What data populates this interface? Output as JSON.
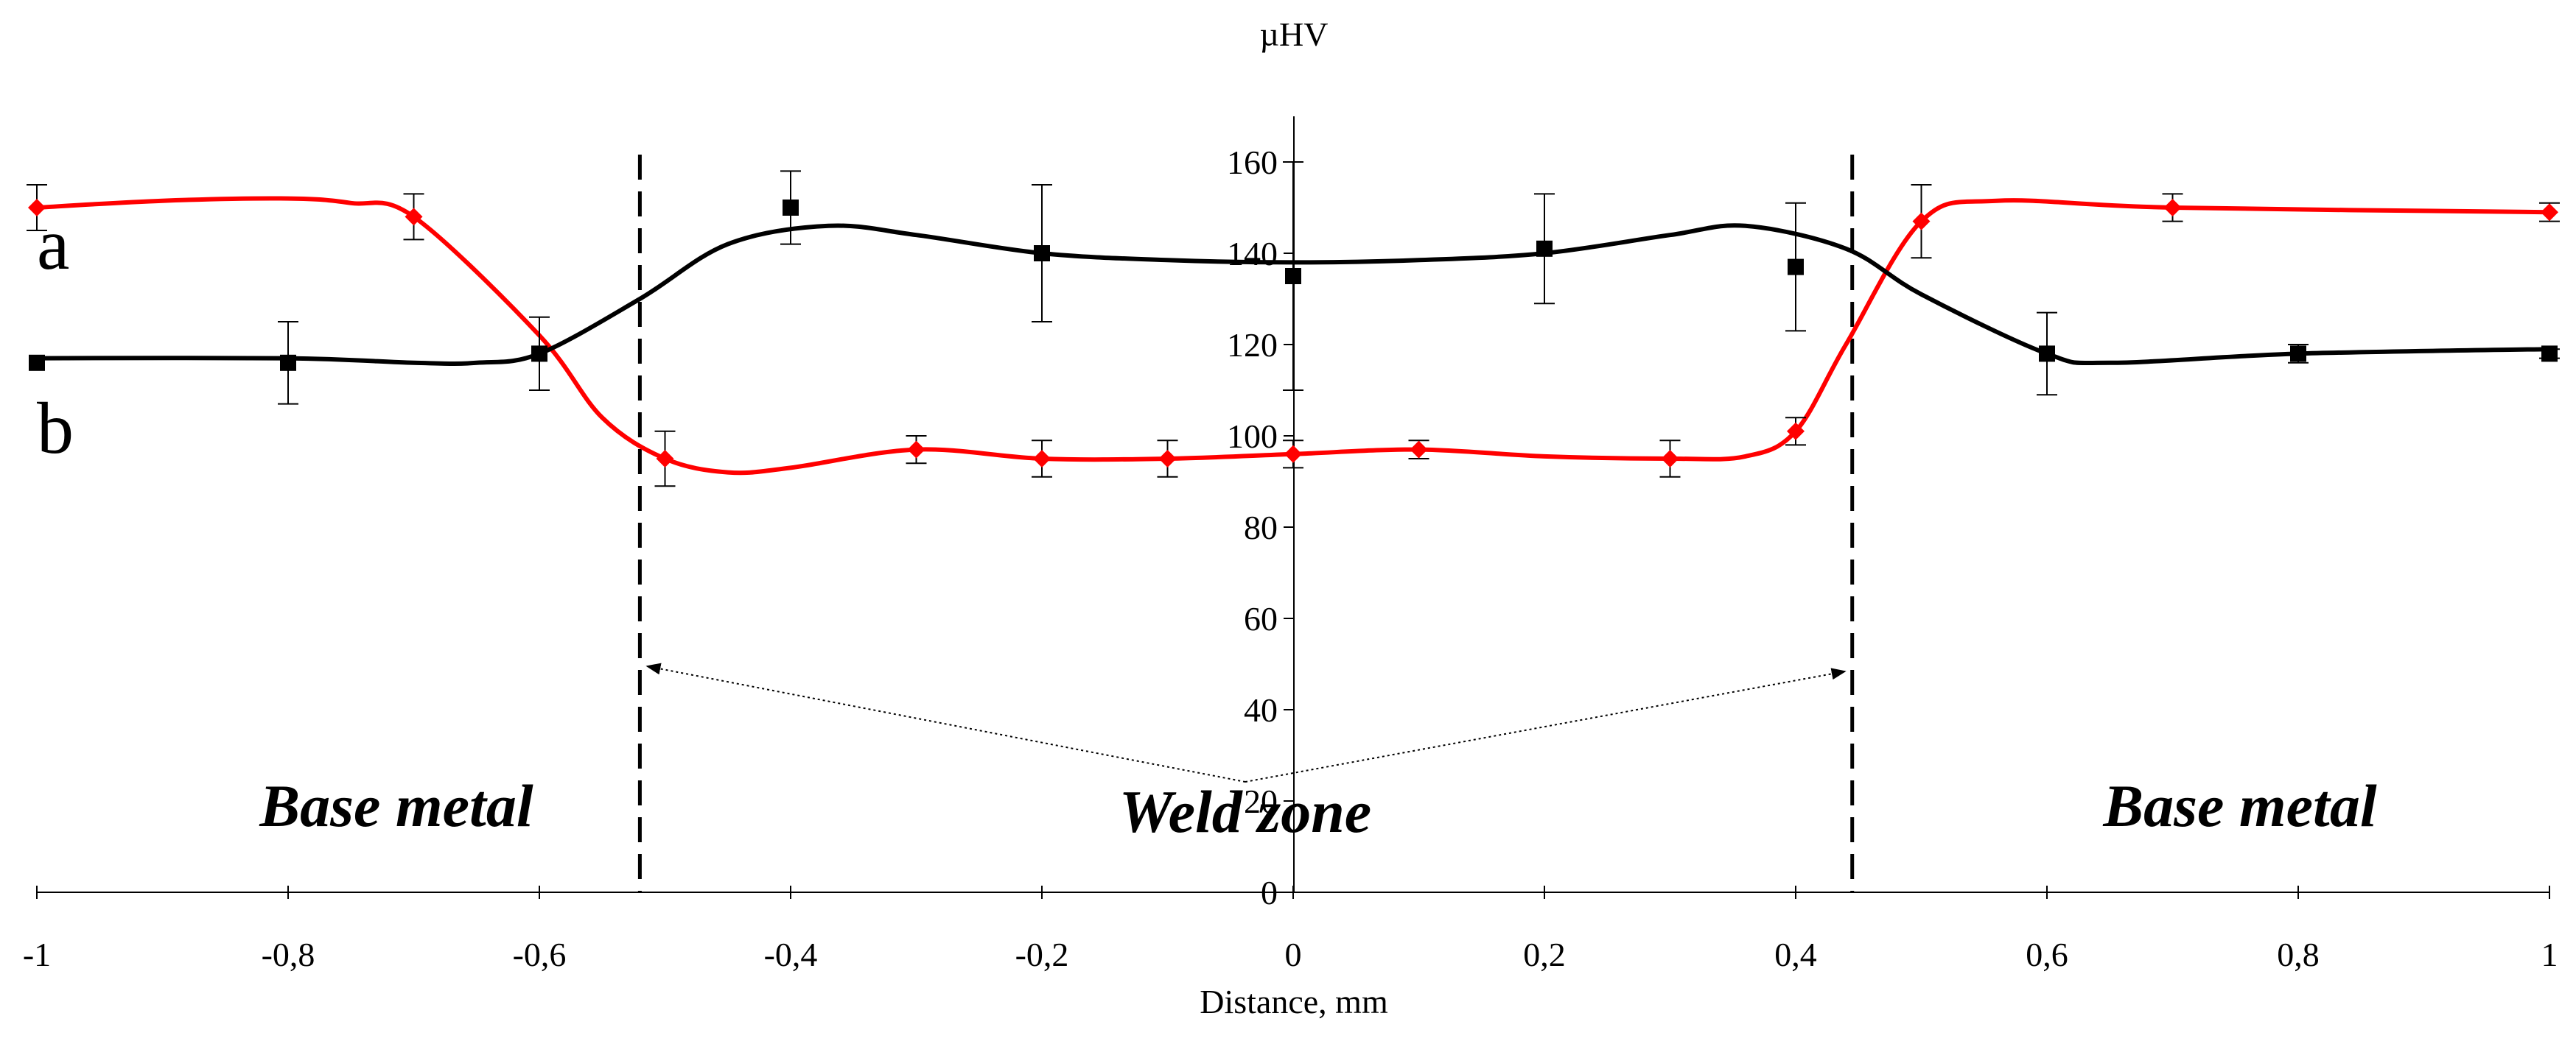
{
  "chart_data": {
    "type": "line",
    "title": "",
    "ylabel": "µHV",
    "xlabel": "Distance, mm",
    "xlim": [
      -1,
      1
    ],
    "ylim": [
      0,
      170
    ],
    "x_ticks": [
      -1,
      -0.8,
      -0.6,
      -0.4,
      -0.2,
      0,
      0.2,
      0.4,
      0.6,
      0.8,
      1
    ],
    "x_tick_labels": [
      "-1",
      "-0,8",
      "-0,6",
      "-0,4",
      "-0,2",
      "0",
      "0,2",
      "0,4",
      "0,6",
      "0,8",
      "1"
    ],
    "y_ticks": [
      0,
      20,
      40,
      60,
      80,
      100,
      120,
      140,
      160
    ],
    "y_tick_labels": [
      "0",
      "20",
      "40",
      "60",
      "80",
      "100",
      "120",
      "140",
      "160"
    ],
    "series": [
      {
        "name": "a",
        "color": "#ff0000",
        "marker": "diamond",
        "x": [
          -1,
          -0.7,
          -0.5,
          -0.3,
          -0.2,
          -0.1,
          0,
          0.1,
          0.3,
          0.4,
          0.5,
          0.7,
          1
        ],
        "values": [
          150,
          148,
          95,
          97,
          95,
          95,
          96,
          97,
          95,
          101,
          147,
          150,
          149
        ],
        "error": [
          5,
          5,
          6,
          3,
          4,
          4,
          3,
          2,
          4,
          3,
          8,
          3,
          2
        ],
        "curve": [
          [
            -1,
            150
          ],
          [
            -0.9,
            151.5
          ],
          [
            -0.8,
            152
          ],
          [
            -0.75,
            151
          ],
          [
            -0.7,
            148
          ],
          [
            -0.6,
            122
          ],
          [
            -0.55,
            104
          ],
          [
            -0.5,
            95
          ],
          [
            -0.45,
            92
          ],
          [
            -0.4,
            93
          ],
          [
            -0.3,
            97
          ],
          [
            -0.2,
            95
          ],
          [
            -0.1,
            95
          ],
          [
            0,
            96
          ],
          [
            0.1,
            97
          ],
          [
            0.2,
            95.5
          ],
          [
            0.3,
            95
          ],
          [
            0.36,
            95.5
          ],
          [
            0.4,
            101
          ],
          [
            0.44,
            120
          ],
          [
            0.5,
            147
          ],
          [
            0.56,
            151.5
          ],
          [
            0.7,
            150
          ],
          [
            1,
            149
          ]
        ]
      },
      {
        "name": "b",
        "color": "#000000",
        "marker": "square",
        "x": [
          -1,
          -0.8,
          -0.6,
          -0.4,
          -0.2,
          0,
          0.2,
          0.4,
          0.6,
          0.8,
          1
        ],
        "values": [
          116,
          116,
          118,
          150,
          140,
          135,
          141,
          137,
          118,
          118,
          118
        ],
        "error": [
          0,
          9,
          8,
          8,
          15,
          25,
          12,
          14,
          9,
          2,
          1
        ],
        "curve": [
          [
            -1,
            117
          ],
          [
            -0.8,
            117
          ],
          [
            -0.7,
            116
          ],
          [
            -0.65,
            116
          ],
          [
            -0.6,
            118
          ],
          [
            -0.52,
            130
          ],
          [
            -0.45,
            142
          ],
          [
            -0.37,
            146
          ],
          [
            -0.3,
            144
          ],
          [
            -0.2,
            140
          ],
          [
            -0.1,
            138.5
          ],
          [
            0,
            138
          ],
          [
            0.1,
            138.5
          ],
          [
            0.2,
            140
          ],
          [
            0.3,
            144
          ],
          [
            0.36,
            146
          ],
          [
            0.44,
            141
          ],
          [
            0.5,
            131
          ],
          [
            0.6,
            118
          ],
          [
            0.65,
            116
          ],
          [
            0.8,
            118
          ],
          [
            1,
            119
          ]
        ]
      }
    ],
    "series_letters": {
      "a": "a",
      "b": "b"
    },
    "weld_boundaries": [
      -0.52,
      0.445
    ],
    "annotations": {
      "left_region": "Base metal",
      "center_region": "Weld zone",
      "right_region": "Base metal"
    }
  }
}
